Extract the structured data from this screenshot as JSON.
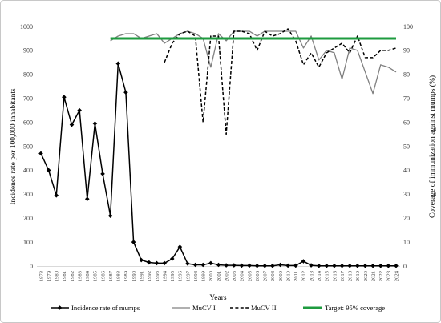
{
  "chart_data": {
    "type": "line",
    "xlabel": "Years",
    "x": [
      1978,
      1979,
      1980,
      1981,
      1982,
      1983,
      1984,
      1985,
      1986,
      1987,
      1988,
      1989,
      1990,
      1991,
      1992,
      1993,
      1994,
      1995,
      1996,
      1997,
      1998,
      1999,
      2000,
      2001,
      2002,
      2003,
      2004,
      2005,
      2006,
      2007,
      2008,
      2009,
      2010,
      2011,
      2012,
      2013,
      2014,
      2015,
      2016,
      2017,
      2018,
      2019,
      2020,
      2021,
      2022,
      2023,
      2024
    ],
    "y_left": {
      "label": "Incidence rate per 100,000 inhabitants",
      "lim": [
        0,
        1000
      ],
      "ticks": [
        0,
        100,
        200,
        300,
        400,
        500,
        600,
        700,
        800,
        900,
        1000
      ]
    },
    "y_right": {
      "label": "Coverage of immunization against mumps (%)",
      "lim": [
        0,
        100
      ],
      "ticks": [
        0,
        10,
        20,
        30,
        40,
        50,
        60,
        70,
        80,
        90,
        100
      ]
    },
    "grid": false,
    "legend": "bottom",
    "series": [
      {
        "name": "Incidence rate of mumps",
        "axis": "left",
        "color": "#000000",
        "line": "solid",
        "marker": "diamond",
        "values": [
          470,
          400,
          295,
          705,
          590,
          650,
          280,
          595,
          385,
          210,
          845,
          725,
          100,
          25,
          15,
          12,
          12,
          30,
          80,
          10,
          5,
          5,
          12,
          5,
          3,
          3,
          2,
          2,
          1,
          1,
          1,
          5,
          2,
          2,
          20,
          3,
          1,
          1,
          1,
          1,
          1,
          1,
          1,
          1,
          1,
          1,
          1
        ]
      },
      {
        "name": "MuCV I",
        "axis": "right",
        "color": "#808080",
        "line": "solid",
        "marker": "none",
        "values": [
          null,
          null,
          null,
          null,
          null,
          null,
          null,
          null,
          null,
          94,
          96,
          97,
          97,
          95,
          96,
          97,
          93,
          95,
          97,
          98,
          97,
          95,
          83,
          97,
          94,
          98,
          98,
          98,
          96,
          98,
          98,
          98,
          98,
          98,
          91,
          96,
          86,
          90,
          89,
          78,
          91,
          90,
          81,
          72,
          84,
          83,
          81
        ]
      },
      {
        "name": "MuCV II",
        "axis": "right",
        "color": "#000000",
        "line": "dashed",
        "marker": "none",
        "values": [
          null,
          null,
          null,
          null,
          null,
          null,
          null,
          null,
          null,
          null,
          null,
          null,
          null,
          null,
          null,
          null,
          85,
          93,
          97,
          98,
          96,
          60,
          96,
          96,
          55,
          98,
          98,
          97,
          90,
          98,
          96,
          97,
          99,
          94,
          84,
          89,
          83,
          89,
          91,
          93,
          89,
          96,
          87,
          87,
          90,
          90,
          91
        ]
      },
      {
        "name": "Target: 95% coverage",
        "axis": "right",
        "color": "#1e9b3f",
        "line": "solid",
        "marker": "none",
        "values": [
          null,
          null,
          null,
          null,
          null,
          null,
          null,
          null,
          null,
          95,
          95,
          95,
          95,
          95,
          95,
          95,
          95,
          95,
          95,
          95,
          95,
          95,
          95,
          95,
          95,
          95,
          95,
          95,
          95,
          95,
          95,
          95,
          95,
          95,
          95,
          95,
          95,
          95,
          95,
          95,
          95,
          95,
          95,
          95,
          95,
          95,
          95
        ]
      }
    ]
  }
}
